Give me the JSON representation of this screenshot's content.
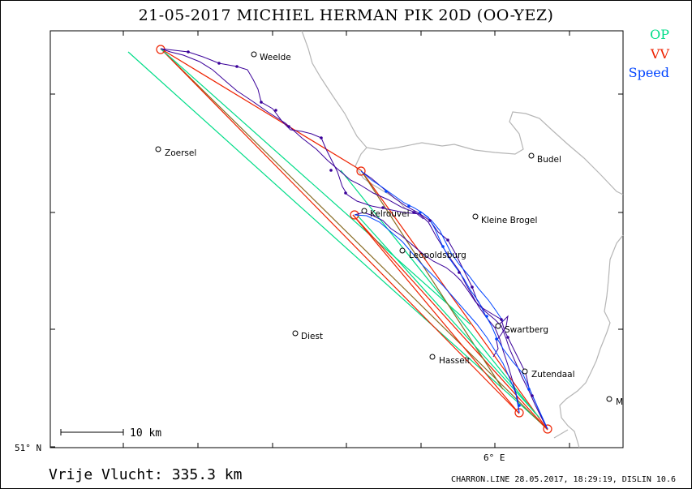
{
  "title": "21-05-2017    MICHIEL HERMAN    PIK 20D (OO-YEZ)",
  "legend": [
    {
      "label": "OP",
      "color": "#00dd88"
    },
    {
      "label": "VV",
      "color": "#ee2200"
    },
    {
      "label": "Speed",
      "color": "#0044ff"
    }
  ],
  "places": [
    {
      "name": "Weelde"
    },
    {
      "name": "Zoersel"
    },
    {
      "name": "Budel"
    },
    {
      "name": "Kleine Brogel"
    },
    {
      "name": "Kelrouvel"
    },
    {
      "name": "Leopoldsburg"
    },
    {
      "name": "Swartberg"
    },
    {
      "name": "Diest"
    },
    {
      "name": "Hasselt"
    },
    {
      "name": "Zutendaal"
    },
    {
      "name": "M"
    }
  ],
  "scale_label": "10 km",
  "axis": {
    "lat_label": "51° N",
    "lon_label": "6° E"
  },
  "distance_text": "Vrije Vlucht:  335.3 km",
  "info_text": "CHARRON.LINE 28.05.2017, 18:29:19, DISLIN 10.6",
  "colors": {
    "track": "#3a0099",
    "border": "#b5b5b5",
    "op": "#00dd88",
    "vv": "#ee2200",
    "speed": "#0044ff",
    "olive": "#886a22"
  }
}
